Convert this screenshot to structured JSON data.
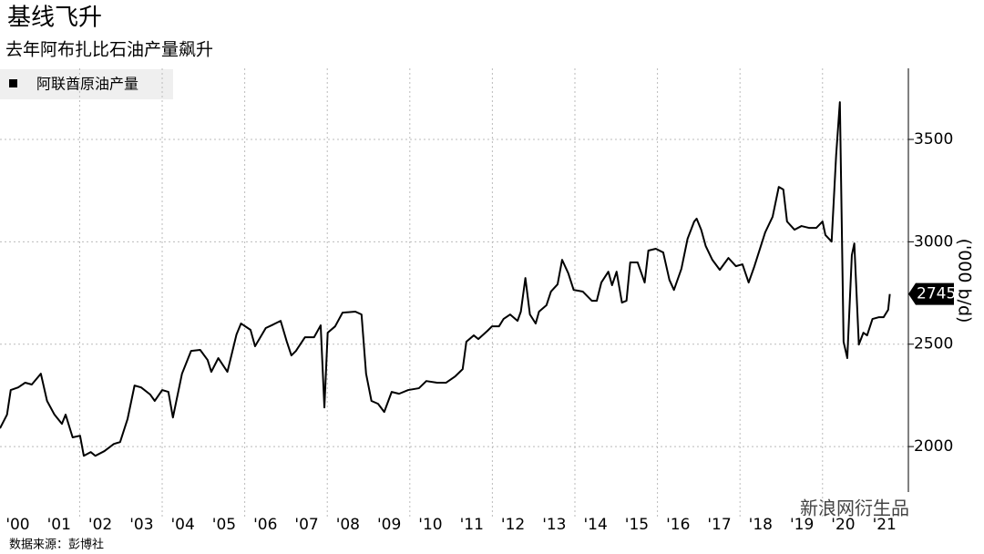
{
  "chart_data": {
    "type": "line",
    "title": "基线飞升",
    "subtitle": "去年阿布扎比石油产量飙升",
    "y_label": "('000 b/d)",
    "source": "数据来源：彭博社",
    "watermark": "新浪网衍生品",
    "x": [
      2000.07,
      2000.24,
      2000.33,
      2000.51,
      2000.68,
      2000.84,
      2001.06,
      2001.21,
      2001.39,
      2001.57,
      2001.66,
      2001.83,
      2002.01,
      2002.1,
      2002.27,
      2002.38,
      2002.6,
      2002.83,
      2002.98,
      2003.16,
      2003.33,
      2003.49,
      2003.71,
      2003.82,
      2004.0,
      2004.15,
      2004.26,
      2004.48,
      2004.7,
      2004.92,
      2005.1,
      2005.19,
      2005.36,
      2005.58,
      2005.8,
      2005.91,
      2006.14,
      2006.25,
      2006.51,
      2006.69,
      2006.87,
      2007.02,
      2007.13,
      2007.24,
      2007.46,
      2007.68,
      2007.84,
      2007.93,
      2008.01,
      2008.19,
      2008.37,
      2008.68,
      2008.83,
      2008.94,
      2009.07,
      2009.23,
      2009.38,
      2009.56,
      2009.74,
      2009.96,
      2010.22,
      2010.4,
      2010.66,
      2010.88,
      2011.1,
      2011.28,
      2011.37,
      2011.55,
      2011.66,
      2011.88,
      2011.99,
      2012.16,
      2012.27,
      2012.43,
      2012.61,
      2012.69,
      2012.8,
      2012.91,
      2013.05,
      2013.13,
      2013.31,
      2013.42,
      2013.58,
      2013.69,
      2013.84,
      2013.97,
      2014.19,
      2014.41,
      2014.53,
      2014.64,
      2014.81,
      2014.9,
      2015.01,
      2015.14,
      2015.25,
      2015.34,
      2015.52,
      2015.69,
      2015.78,
      2015.96,
      2016.14,
      2016.29,
      2016.4,
      2016.58,
      2016.73,
      2016.89,
      2016.95,
      2017.06,
      2017.17,
      2017.33,
      2017.51,
      2017.72,
      2017.9,
      2018.06,
      2018.21,
      2018.35,
      2018.61,
      2018.79,
      2018.94,
      2019.05,
      2019.14,
      2019.32,
      2019.49,
      2019.67,
      2019.85,
      2020.0,
      2020.07,
      2020.22,
      2020.33,
      2020.42,
      2020.51,
      2020.6,
      2020.71,
      2020.77,
      2020.88,
      2020.99,
      2021.08,
      2021.21,
      2021.37,
      2021.48,
      2021.59,
      2021.63
    ],
    "series": [
      {
        "name": "阿联酋原油产量",
        "color": "#000000",
        "values": [
          2089,
          2156,
          2276,
          2289,
          2312,
          2303,
          2356,
          2223,
          2156,
          2111,
          2156,
          2045,
          2053,
          1955,
          1973,
          1955,
          1978,
          2013,
          2022,
          2134,
          2298,
          2289,
          2254,
          2223,
          2276,
          2267,
          2142,
          2356,
          2467,
          2472,
          2423,
          2365,
          2432,
          2365,
          2547,
          2601,
          2570,
          2490,
          2579,
          2596,
          2614,
          2512,
          2445,
          2467,
          2534,
          2534,
          2592,
          2191,
          2556,
          2587,
          2654,
          2659,
          2645,
          2356,
          2223,
          2209,
          2169,
          2267,
          2258,
          2276,
          2285,
          2320,
          2312,
          2312,
          2343,
          2378,
          2512,
          2543,
          2525,
          2565,
          2587,
          2587,
          2623,
          2645,
          2614,
          2659,
          2823,
          2645,
          2601,
          2659,
          2690,
          2757,
          2792,
          2912,
          2846,
          2765,
          2757,
          2712,
          2712,
          2801,
          2854,
          2788,
          2854,
          2703,
          2712,
          2899,
          2899,
          2801,
          2957,
          2966,
          2948,
          2814,
          2765,
          2868,
          3015,
          3099,
          3113,
          3059,
          2979,
          2912,
          2863,
          2921,
          2881,
          2890,
          2801,
          2881,
          3046,
          3122,
          3268,
          3255,
          3099,
          3059,
          3077,
          3068,
          3068,
          3099,
          3033,
          3001,
          3424,
          3682,
          2512,
          2432,
          2935,
          2992,
          2498,
          2556,
          2543,
          2623,
          2632,
          2632,
          2668,
          2745
        ]
      }
    ],
    "xlim": [
      2000.07,
      2022.08
    ],
    "ylim": [
      1778,
      3847
    ],
    "yticks": [
      2000,
      2500,
      3000,
      3500
    ],
    "xticks": [
      {
        "value": 2000.5,
        "label": "'00"
      },
      {
        "value": 2001.5,
        "label": "'01"
      },
      {
        "value": 2002.5,
        "label": "'02"
      },
      {
        "value": 2003.5,
        "label": "'03"
      },
      {
        "value": 2004.5,
        "label": "'04"
      },
      {
        "value": 2005.5,
        "label": "'05"
      },
      {
        "value": 2006.5,
        "label": "'06"
      },
      {
        "value": 2007.5,
        "label": "'07"
      },
      {
        "value": 2008.5,
        "label": "'08"
      },
      {
        "value": 2009.5,
        "label": "'09"
      },
      {
        "value": 2010.5,
        "label": "'10"
      },
      {
        "value": 2011.5,
        "label": "'11"
      },
      {
        "value": 2012.5,
        "label": "'12"
      },
      {
        "value": 2013.5,
        "label": "'13"
      },
      {
        "value": 2014.5,
        "label": "'14"
      },
      {
        "value": 2015.5,
        "label": "'15"
      },
      {
        "value": 2016.5,
        "label": "'16"
      },
      {
        "value": 2017.5,
        "label": "'17"
      },
      {
        "value": 2018.5,
        "label": "'18"
      },
      {
        "value": 2019.5,
        "label": "'19"
      },
      {
        "value": 2020.5,
        "label": "'20"
      },
      {
        "value": 2021.5,
        "label": "'21"
      }
    ],
    "xgrid": [
      2002,
      2004,
      2006,
      2008,
      2010,
      2012,
      2014,
      2016,
      2018,
      2020
    ],
    "grid": true
  }
}
